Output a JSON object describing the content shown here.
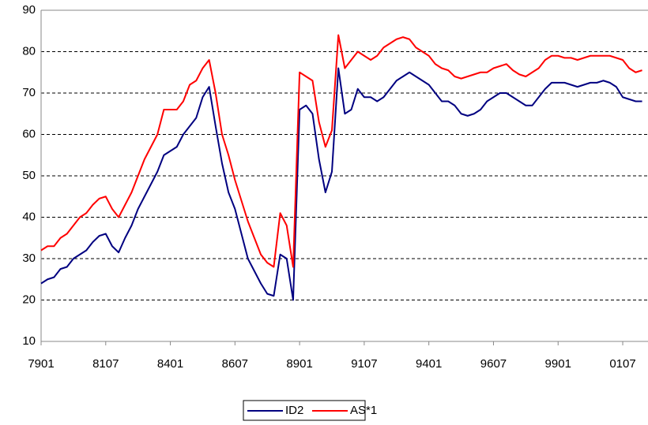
{
  "chart_data": {
    "type": "line",
    "categories": [
      "7901",
      null,
      null,
      null,
      null,
      null,
      null,
      null,
      null,
      null,
      "8107",
      null,
      null,
      null,
      null,
      null,
      null,
      null,
      null,
      null,
      "8401",
      null,
      null,
      null,
      null,
      null,
      null,
      null,
      null,
      null,
      "8607",
      null,
      null,
      null,
      null,
      null,
      null,
      null,
      null,
      null,
      "8901",
      null,
      null,
      null,
      null,
      null,
      null,
      null,
      null,
      null,
      "9107",
      null,
      null,
      null,
      null,
      null,
      null,
      null,
      null,
      null,
      "9401",
      null,
      null,
      null,
      null,
      null,
      null,
      null,
      null,
      null,
      "9607",
      null,
      null,
      null,
      null,
      null,
      null,
      null,
      null,
      null,
      "9901",
      null,
      null,
      null,
      null,
      null,
      null,
      null,
      null,
      null,
      "0107",
      null,
      null,
      null
    ],
    "series": [
      {
        "name": "ID2",
        "color": "#000080",
        "values": [
          24,
          25,
          25.5,
          27.5,
          28,
          30,
          31,
          32,
          34,
          35.5,
          36,
          33,
          31.5,
          35,
          38,
          42,
          45,
          48,
          51,
          55,
          56,
          57,
          60,
          62,
          64,
          69,
          71.5,
          62,
          53,
          46,
          42,
          36,
          30,
          27,
          24,
          21.5,
          21,
          31,
          30,
          20,
          66,
          67,
          65,
          54,
          46,
          51,
          76,
          65,
          66,
          71,
          69,
          69,
          68,
          69,
          71,
          73,
          74,
          75,
          74,
          73,
          72,
          70,
          68,
          68,
          67,
          65,
          64.5,
          65,
          66,
          68,
          69,
          70,
          70,
          69,
          68,
          67,
          67,
          69,
          71,
          72.5,
          72.5,
          72.5,
          72,
          71.5,
          72,
          72.5,
          72.5,
          73,
          72.5,
          71.5,
          69,
          68.5,
          68,
          68
        ]
      },
      {
        "name": "AS*1",
        "color": "#ff0000",
        "values": [
          32,
          33,
          33,
          35,
          36,
          38,
          40,
          41,
          43,
          44.5,
          45,
          42,
          40,
          43,
          46,
          50,
          54,
          57,
          60,
          66,
          66,
          66,
          68,
          72,
          73,
          76,
          78,
          70,
          60,
          55,
          49,
          44,
          39,
          35,
          31,
          29,
          28,
          41,
          38,
          28,
          75,
          74,
          73,
          63,
          57,
          61,
          84,
          76,
          78,
          80,
          79,
          78,
          79,
          81,
          82,
          83,
          83.5,
          83,
          81,
          80,
          79,
          77,
          76,
          75.5,
          74,
          73.5,
          74,
          74.5,
          75,
          75,
          76,
          76.5,
          77,
          75.5,
          74.5,
          74,
          75,
          76,
          78,
          79,
          79,
          78.5,
          78.5,
          78,
          78.5,
          79,
          79,
          79,
          79,
          78.5,
          78,
          76,
          75,
          75.5
        ]
      }
    ],
    "ylim": [
      10,
      90
    ],
    "yticks": [
      10,
      20,
      30,
      40,
      50,
      60,
      70,
      80,
      90
    ],
    "grid": true
  }
}
